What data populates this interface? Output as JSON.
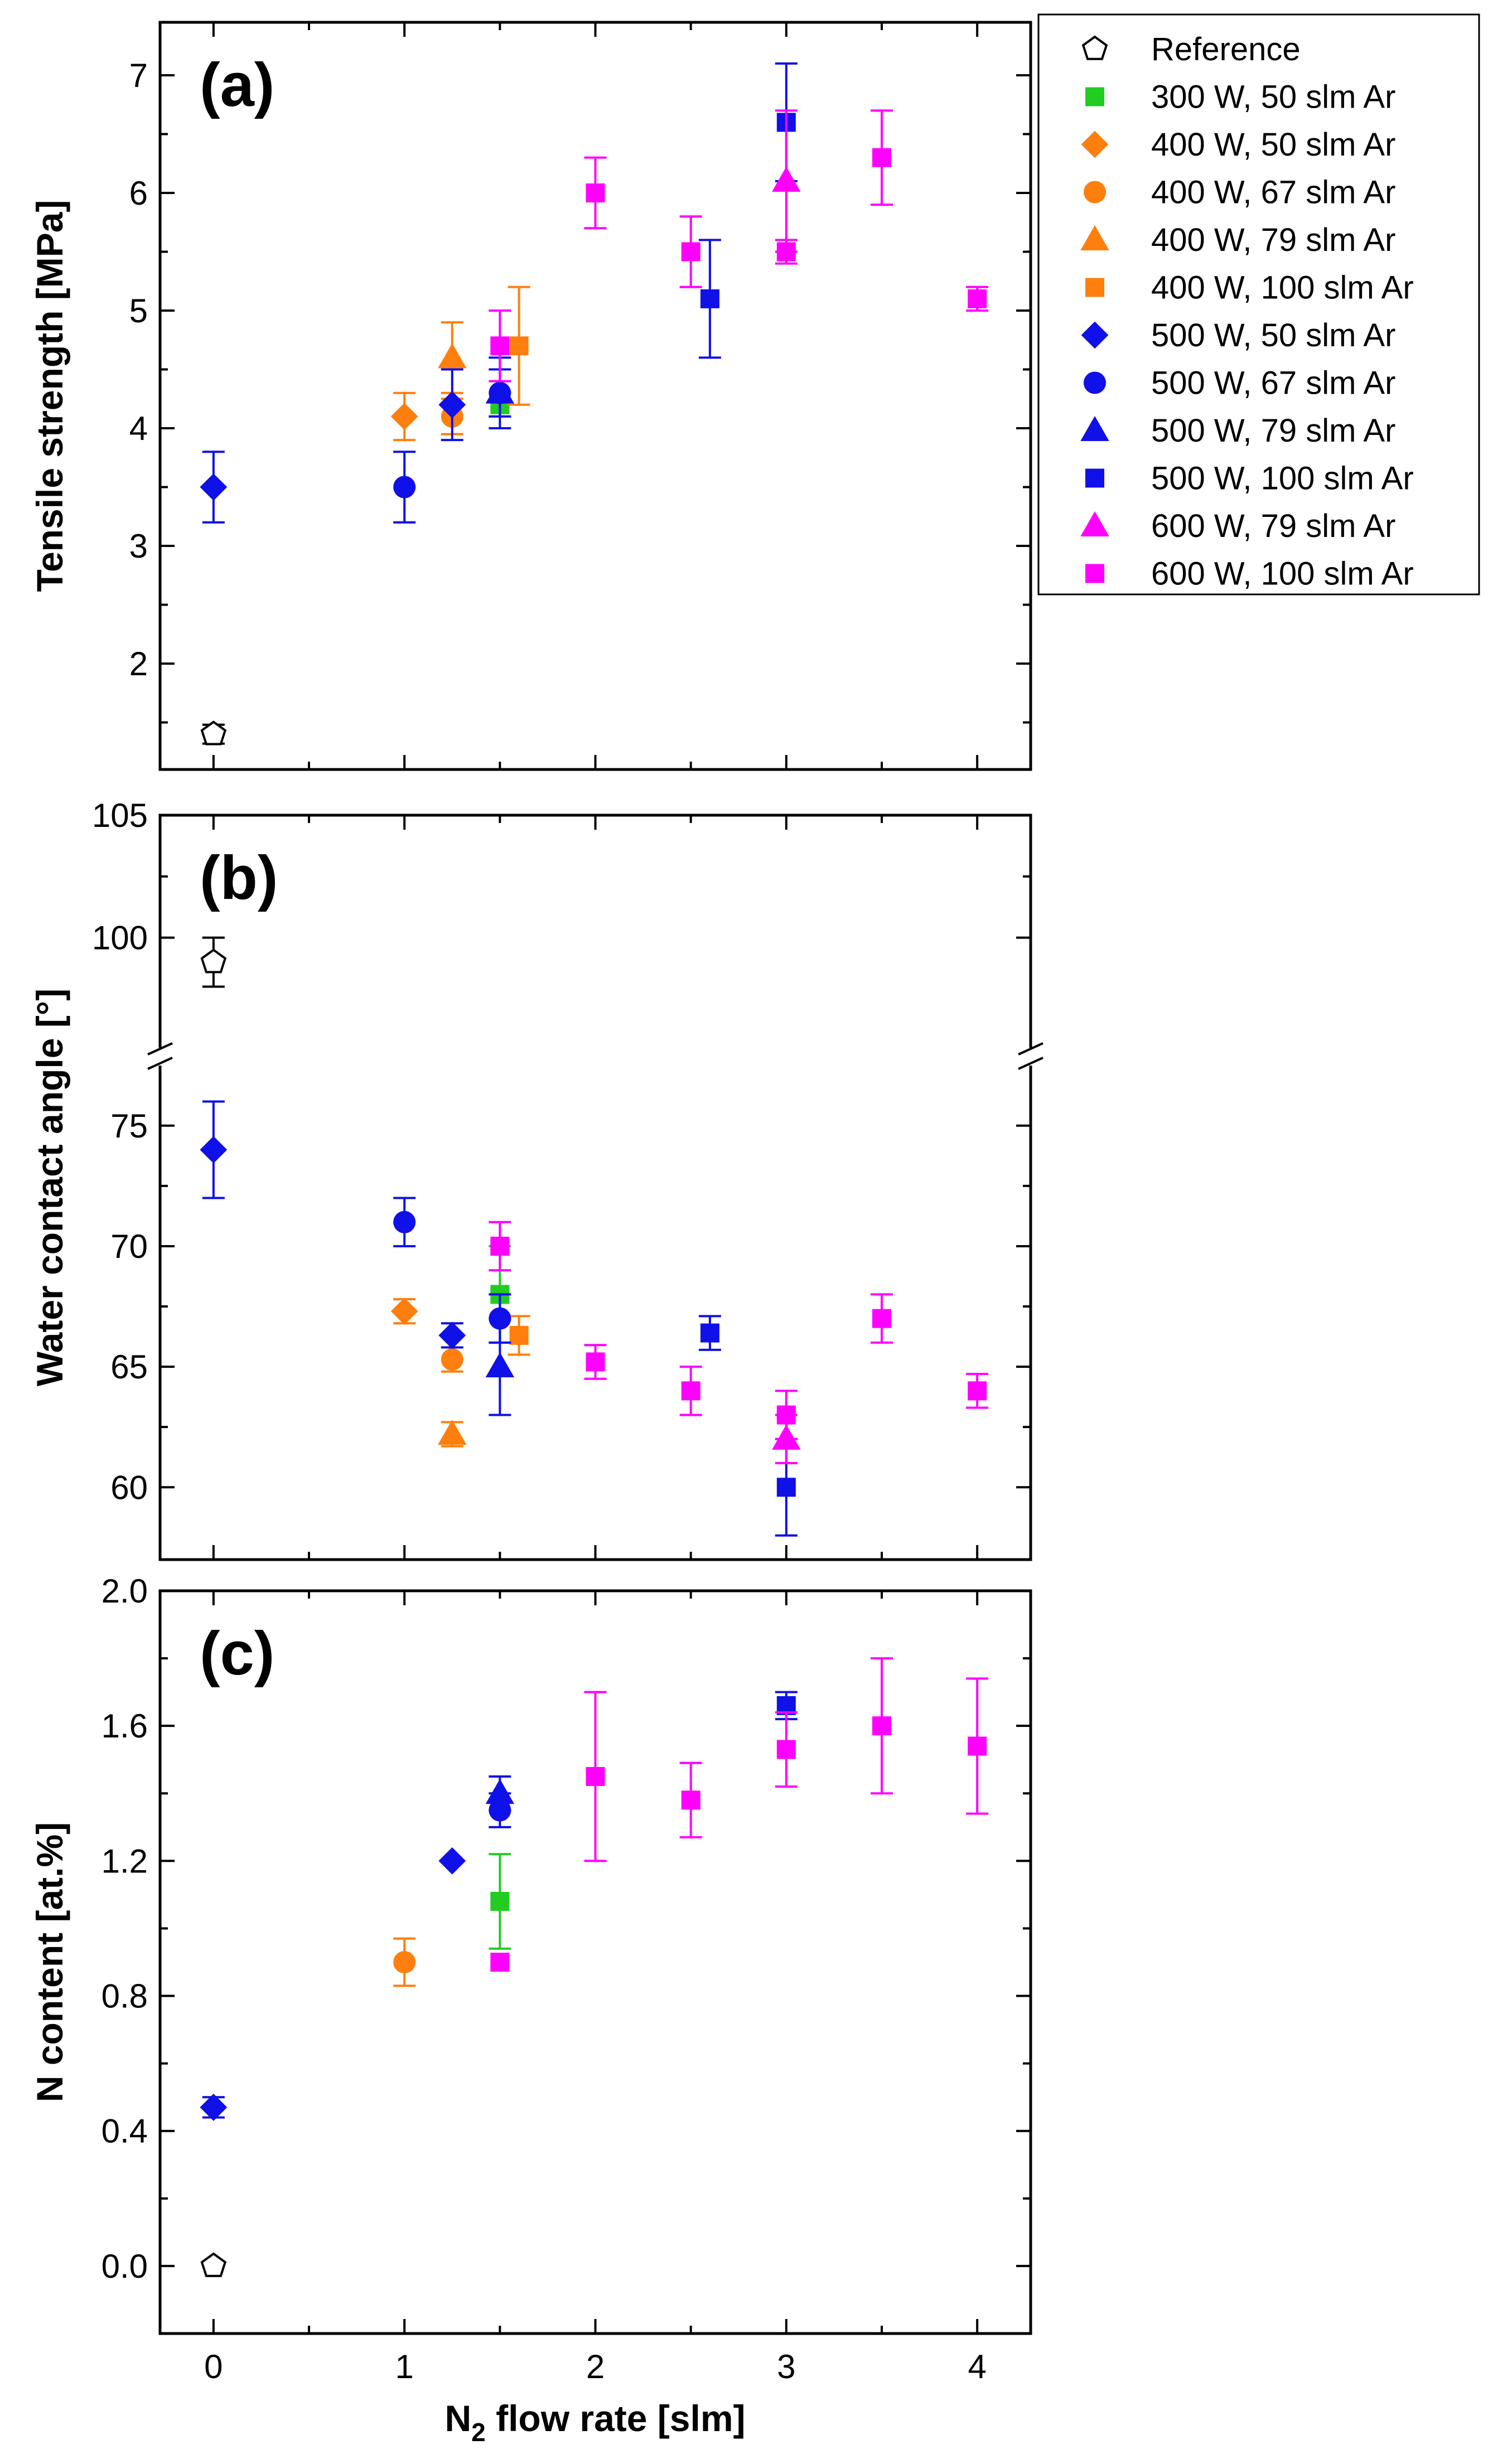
{
  "chart_data": {
    "type": "scatter",
    "xlabel": "N flow rate [slm]",
    "xlabel_main": "N",
    "xlabel_sub": "2",
    "xlabel_rest": " flow rate [slm]",
    "xlim": [
      -0.28,
      4.28
    ],
    "xticks": [
      "0",
      "1",
      "2",
      "3",
      "4"
    ],
    "xtick_values": [
      0,
      1,
      2,
      3,
      4
    ],
    "legend_position": "top-right, outside panel (a)",
    "series_styles": [
      {
        "name": "Reference",
        "marker": "pentagon",
        "color": "#000000",
        "filled": false
      },
      {
        "name": "300 W, 50 slm Ar",
        "marker": "square",
        "color": "#22cc22",
        "filled": true
      },
      {
        "name": "400 W, 50 slm Ar",
        "marker": "diamond",
        "color": "#ff7f0e",
        "filled": true
      },
      {
        "name": "400 W, 67 slm Ar",
        "marker": "circle",
        "color": "#ff7f0e",
        "filled": true
      },
      {
        "name": "400 W, 79 slm Ar",
        "marker": "triangle",
        "color": "#ff7f0e",
        "filled": true
      },
      {
        "name": "400 W, 100 slm Ar",
        "marker": "square",
        "color": "#ff7f0e",
        "filled": true
      },
      {
        "name": "500 W, 50 slm Ar",
        "marker": "diamond",
        "color": "#1010e8",
        "filled": true
      },
      {
        "name": "500 W, 67 slm Ar",
        "marker": "circle",
        "color": "#1010e8",
        "filled": true
      },
      {
        "name": "500 W, 79 slm Ar",
        "marker": "triangle",
        "color": "#1010e8",
        "filled": true
      },
      {
        "name": "500 W, 100 slm Ar",
        "marker": "square",
        "color": "#1010e8",
        "filled": true
      },
      {
        "name": "600 W, 79 slm Ar",
        "marker": "triangle",
        "color": "#ff00ff",
        "filled": true
      },
      {
        "name": "600 W, 100 slm Ar",
        "marker": "square",
        "color": "#ff00ff",
        "filled": true
      }
    ],
    "panels": [
      {
        "label": "(a)",
        "ylabel": "Tensile strength [MPa]",
        "ylim": [
          1.1,
          7.45
        ],
        "yticks": [
          2,
          3,
          4,
          5,
          6,
          7
        ],
        "ytick_labels": [
          "2",
          "3",
          "4",
          "5",
          "6",
          "7"
        ],
        "series": [
          {
            "name": "Reference",
            "points": [
              {
                "x": 0,
                "y": 1.4,
                "err": 0.08
              }
            ]
          },
          {
            "name": "300 W, 50 slm Ar",
            "points": [
              {
                "x": 1.5,
                "y": 4.2,
                "err": 0.1
              }
            ]
          },
          {
            "name": "400 W, 50 slm Ar",
            "points": [
              {
                "x": 1.0,
                "y": 4.1,
                "err": 0.2
              }
            ]
          },
          {
            "name": "400 W, 67 slm Ar",
            "points": [
              {
                "x": 1.25,
                "y": 4.1,
                "err": 0.15
              }
            ]
          },
          {
            "name": "400 W, 79 slm Ar",
            "points": [
              {
                "x": 1.25,
                "y": 4.6,
                "err": 0.3
              }
            ]
          },
          {
            "name": "400 W, 100 slm Ar",
            "points": [
              {
                "x": 1.6,
                "y": 4.7,
                "err": 0.5
              }
            ]
          },
          {
            "name": "500 W, 50 slm Ar",
            "points": [
              {
                "x": 0,
                "y": 3.5,
                "err": 0.3
              },
              {
                "x": 1.25,
                "y": 4.2,
                "err": 0.3
              }
            ]
          },
          {
            "name": "500 W, 67 slm Ar",
            "points": [
              {
                "x": 1.0,
                "y": 3.5,
                "err": 0.3
              },
              {
                "x": 1.5,
                "y": 4.3,
                "err": 0.3
              }
            ]
          },
          {
            "name": "500 W, 79 slm Ar",
            "points": [
              {
                "x": 1.5,
                "y": 4.3,
                "err": 0.2
              }
            ]
          },
          {
            "name": "500 W, 100 slm Ar",
            "points": [
              {
                "x": 2.6,
                "y": 5.1,
                "err": 0.5
              },
              {
                "x": 3.0,
                "y": 6.6,
                "err": 0.5
              }
            ]
          },
          {
            "name": "600 W, 79 slm Ar",
            "points": [
              {
                "x": 3.0,
                "y": 6.1,
                "err": 0.6
              }
            ]
          },
          {
            "name": "600 W, 100 slm Ar",
            "points": [
              {
                "x": 1.5,
                "y": 4.7,
                "err": 0.3
              },
              {
                "x": 2.0,
                "y": 6.0,
                "err": 0.3
              },
              {
                "x": 2.5,
                "y": 5.5,
                "err": 0.3
              },
              {
                "x": 3.0,
                "y": 5.5,
                "err": 0.1
              },
              {
                "x": 3.5,
                "y": 6.3,
                "err": 0.4
              },
              {
                "x": 4.0,
                "y": 5.1,
                "err": 0.1
              }
            ]
          }
        ]
      },
      {
        "label": "(b)",
        "ylabel": "Water contact angle [°]",
        "axis_break": {
          "lower_ylim": [
            57,
            77.4
          ],
          "upper_ylim": [
            95.6,
            105
          ],
          "between": [
            77,
            96
          ]
        },
        "yticks": [
          60,
          65,
          70,
          75,
          100,
          105
        ],
        "ytick_labels": [
          "60",
          "65",
          "70",
          "75",
          "100",
          "105"
        ],
        "series": [
          {
            "name": "Reference",
            "points": [
              {
                "x": 0,
                "y": 99,
                "err": 1
              }
            ]
          },
          {
            "name": "300 W, 50 slm Ar",
            "points": [
              {
                "x": 1.5,
                "y": 68,
                "err": 2
              }
            ]
          },
          {
            "name": "400 W, 50 slm Ar",
            "points": [
              {
                "x": 1.0,
                "y": 67.3,
                "err": 0.5
              }
            ]
          },
          {
            "name": "400 W, 67 slm Ar",
            "points": [
              {
                "x": 1.25,
                "y": 65.3,
                "err": 0.5
              }
            ]
          },
          {
            "name": "400 W, 79 slm Ar",
            "points": [
              {
                "x": 1.25,
                "y": 62.2,
                "err": 0.5
              }
            ]
          },
          {
            "name": "400 W, 100 slm Ar",
            "points": [
              {
                "x": 1.6,
                "y": 66.3,
                "err": 0.8
              }
            ]
          },
          {
            "name": "500 W, 50 slm Ar",
            "points": [
              {
                "x": 0,
                "y": 74,
                "err": 2
              },
              {
                "x": 1.25,
                "y": 66.3,
                "err": 0.5
              }
            ]
          },
          {
            "name": "500 W, 67 slm Ar",
            "points": [
              {
                "x": 1.0,
                "y": 71,
                "err": 1
              },
              {
                "x": 1.5,
                "y": 67,
                "err": 1
              }
            ]
          },
          {
            "name": "500 W, 79 slm Ar",
            "points": [
              {
                "x": 1.5,
                "y": 65,
                "err": 2
              }
            ]
          },
          {
            "name": "500 W, 100 slm Ar",
            "points": [
              {
                "x": 2.6,
                "y": 66.4,
                "err": 0.7
              },
              {
                "x": 3.0,
                "y": 60,
                "err": 2
              }
            ]
          },
          {
            "name": "600 W, 79 slm Ar",
            "points": [
              {
                "x": 3.0,
                "y": 62,
                "err": 1
              }
            ]
          },
          {
            "name": "600 W, 100 slm Ar",
            "points": [
              {
                "x": 1.5,
                "y": 70,
                "err": 1
              },
              {
                "x": 2.0,
                "y": 65.2,
                "err": 0.7
              },
              {
                "x": 2.5,
                "y": 64,
                "err": 1
              },
              {
                "x": 3.0,
                "y": 63,
                "err": 1
              },
              {
                "x": 3.5,
                "y": 67,
                "err": 1
              },
              {
                "x": 4.0,
                "y": 64,
                "err": 0.7
              }
            ]
          }
        ]
      },
      {
        "label": "(c)",
        "ylabel": "N content [at.%]",
        "ylim": [
          -0.2,
          2.0
        ],
        "yticks": [
          0.0,
          0.4,
          0.8,
          1.2,
          1.6,
          2.0
        ],
        "ytick_labels": [
          "0.0",
          "0.4",
          "0.8",
          "1.2",
          "1.6",
          "2.0"
        ],
        "series": [
          {
            "name": "Reference",
            "points": [
              {
                "x": 0,
                "y": 0.0,
                "err": 0
              }
            ]
          },
          {
            "name": "300 W, 50 slm Ar",
            "points": [
              {
                "x": 1.5,
                "y": 1.08,
                "err": 0.14
              }
            ]
          },
          {
            "name": "400 W, 67 slm Ar",
            "points": [
              {
                "x": 1.0,
                "y": 0.9,
                "err": 0.07
              }
            ]
          },
          {
            "name": "500 W, 50 slm Ar",
            "points": [
              {
                "x": 0,
                "y": 0.47,
                "err": 0.03
              },
              {
                "x": 1.25,
                "y": 1.2,
                "err": 0
              }
            ]
          },
          {
            "name": "500 W, 67 slm Ar",
            "points": [
              {
                "x": 1.5,
                "y": 1.35,
                "err": 0.05
              }
            ]
          },
          {
            "name": "500 W, 79 slm Ar",
            "points": [
              {
                "x": 1.5,
                "y": 1.4,
                "err": 0.05
              }
            ]
          },
          {
            "name": "500 W, 100 slm Ar",
            "points": [
              {
                "x": 3.0,
                "y": 1.66,
                "err": 0.04
              }
            ]
          },
          {
            "name": "600 W, 100 slm Ar",
            "points": [
              {
                "x": 1.5,
                "y": 0.9,
                "err": 0
              },
              {
                "x": 2.0,
                "y": 1.45,
                "err": 0.25
              },
              {
                "x": 2.5,
                "y": 1.38,
                "err": 0.11
              },
              {
                "x": 3.0,
                "y": 1.53,
                "err": 0.11
              },
              {
                "x": 3.5,
                "y": 1.6,
                "err": 0.2
              },
              {
                "x": 4.0,
                "y": 1.54,
                "err": 0.2
              }
            ]
          }
        ]
      }
    ]
  }
}
